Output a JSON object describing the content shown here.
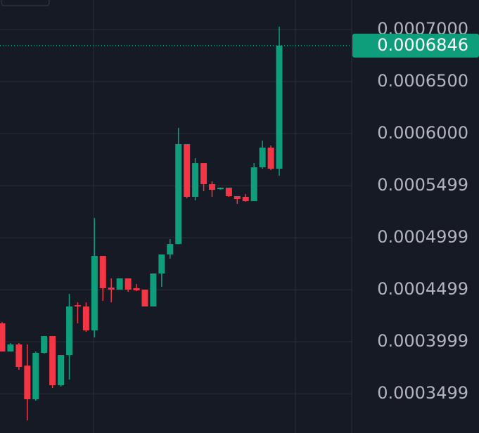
{
  "chart_data": {
    "type": "candlestick",
    "up_color": "#0f9e7b",
    "down_color": "#f23645",
    "open": [
      0.0004176,
      0.0003905,
      0.0003973,
      0.000377,
      0.0003446,
      0.0003892,
      0.0004054,
      0.0003581,
      0.0003872,
      0.0004351,
      0.0004338,
      0.0004108,
      0.0004824,
      0.000452,
      0.00045,
      0.0004608,
      0.0004514,
      0.00045,
      0.0004338,
      0.0004655,
      0.0004838,
      0.0004939,
      0.0005899,
      0.0005392,
      0.0005716,
      0.0005514,
      0.0005466,
      0.000548,
      0.0005399,
      0.0005392,
      0.0005351,
      0.0005676,
      0.0005865,
      0.0005662
    ],
    "high": [
      0.0004189,
      0.0003986,
      0.0003986,
      0.0003973,
      0.0003905,
      0.0004054,
      0.0004054,
      0.0003872,
      0.0004459,
      0.0004378,
      0.0004378,
      0.0005189,
      0.0004824,
      0.0004608,
      0.0004608,
      0.0004608,
      0.0004554,
      0.00045,
      0.0004655,
      0.0004838,
      0.0004986,
      0.0006054,
      0.0005899,
      0.0005764,
      0.0005716,
      0.0005541,
      0.000548,
      0.000548,
      0.0005399,
      0.0005419,
      0.0005716,
      0.0005932,
      0.0005885,
      0.0007027
    ],
    "low": [
      0.0003905,
      0.0003905,
      0.000373,
      0.0003243,
      0.0003432,
      0.0003885,
      0.0003554,
      0.0003568,
      0.0003635,
      0.0004176,
      0.0004095,
      0.0004041,
      0.0004392,
      0.0004378,
      0.00045,
      0.000448,
      0.0004486,
      0.0004338,
      0.0004338,
      0.0004527,
      0.0004797,
      0.0004939,
      0.0005378,
      0.0005358,
      0.0005446,
      0.0005392,
      0.0005459,
      0.0005392,
      0.0005324,
      0.0005345,
      0.0005351,
      0.0005662,
      0.0005649,
      0.0005595
    ],
    "close": [
      0.0003905,
      0.0003973,
      0.0003757,
      0.0003446,
      0.0003892,
      0.0004054,
      0.0003581,
      0.0003872,
      0.0004338,
      0.0004338,
      0.0004108,
      0.0004824,
      0.0004514,
      0.00045,
      0.0004608,
      0.00045,
      0.0004493,
      0.0004338,
      0.0004655,
      0.0004838,
      0.0004939,
      0.0005899,
      0.0005392,
      0.0005716,
      0.0005514,
      0.0005459,
      0.000548,
      0.0005399,
      0.0005372,
      0.0005351,
      0.0005676,
      0.0005865,
      0.0005662,
      0.0006846
    ],
    "ylim": [
      0.0003122,
      0.0007284
    ],
    "yticks": [
      {
        "value": 0.0007,
        "label": "0.0007000"
      },
      {
        "value": 0.00065,
        "label": "0.0006500"
      },
      {
        "value": 0.0006,
        "label": "0.0006000"
      },
      0.0005499,
      0.0004999,
      0.0004499,
      0.0003999,
      0.0003499
    ],
    "grid": true,
    "last_price": 0.0006846
  }
}
